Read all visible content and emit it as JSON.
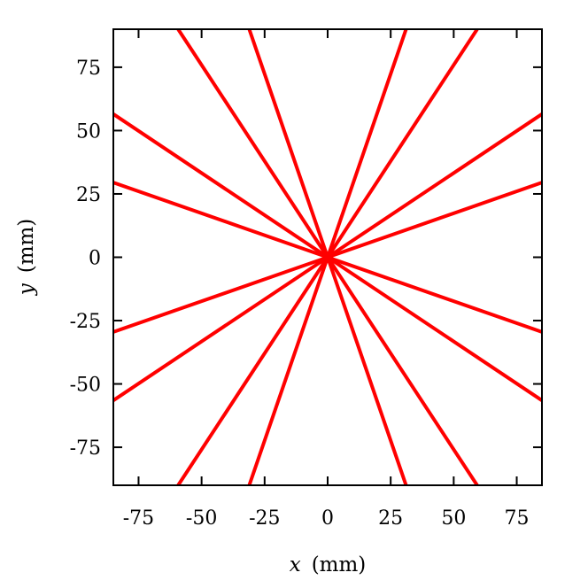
{
  "chart_data": {
    "type": "line",
    "title": "",
    "xlabel": {
      "var": "x",
      "unit": "(mm)"
    },
    "ylabel": {
      "var": "y",
      "unit": "(mm)"
    },
    "xlim": [
      -85,
      85
    ],
    "ylim": [
      -90,
      90
    ],
    "xticks": [
      -75,
      -50,
      -25,
      0,
      25,
      50,
      75
    ],
    "yticks": [
      -75,
      -50,
      -25,
      0,
      25,
      50,
      75
    ],
    "xtick_labels": [
      "-75",
      "-50",
      "-25",
      "0",
      "25",
      "50",
      "75"
    ],
    "ytick_labels": [
      "-75",
      "-50",
      "-25",
      "0",
      "25",
      "50",
      "75"
    ],
    "grid": false,
    "legend": "none",
    "line_color": "#ff0000",
    "series": [
      {
        "points": [
          [
            -85,
            56.5
          ],
          [
            85,
            -56.5
          ]
        ]
      },
      {
        "points": [
          [
            -85,
            -56.5
          ],
          [
            85,
            56.5
          ]
        ]
      },
      {
        "points": [
          [
            -85,
            29.5
          ],
          [
            85,
            -29.5
          ]
        ]
      },
      {
        "points": [
          [
            -85,
            -29.5
          ],
          [
            85,
            29.5
          ]
        ]
      },
      {
        "points": [
          [
            -59.3,
            90
          ],
          [
            59.3,
            -90
          ]
        ]
      },
      {
        "points": [
          [
            -59.3,
            -90
          ],
          [
            59.3,
            90
          ]
        ]
      },
      {
        "points": [
          [
            -31.1,
            90
          ],
          [
            31.1,
            -90
          ]
        ]
      },
      {
        "points": [
          [
            -31.1,
            -90
          ],
          [
            31.1,
            90
          ]
        ]
      }
    ]
  }
}
